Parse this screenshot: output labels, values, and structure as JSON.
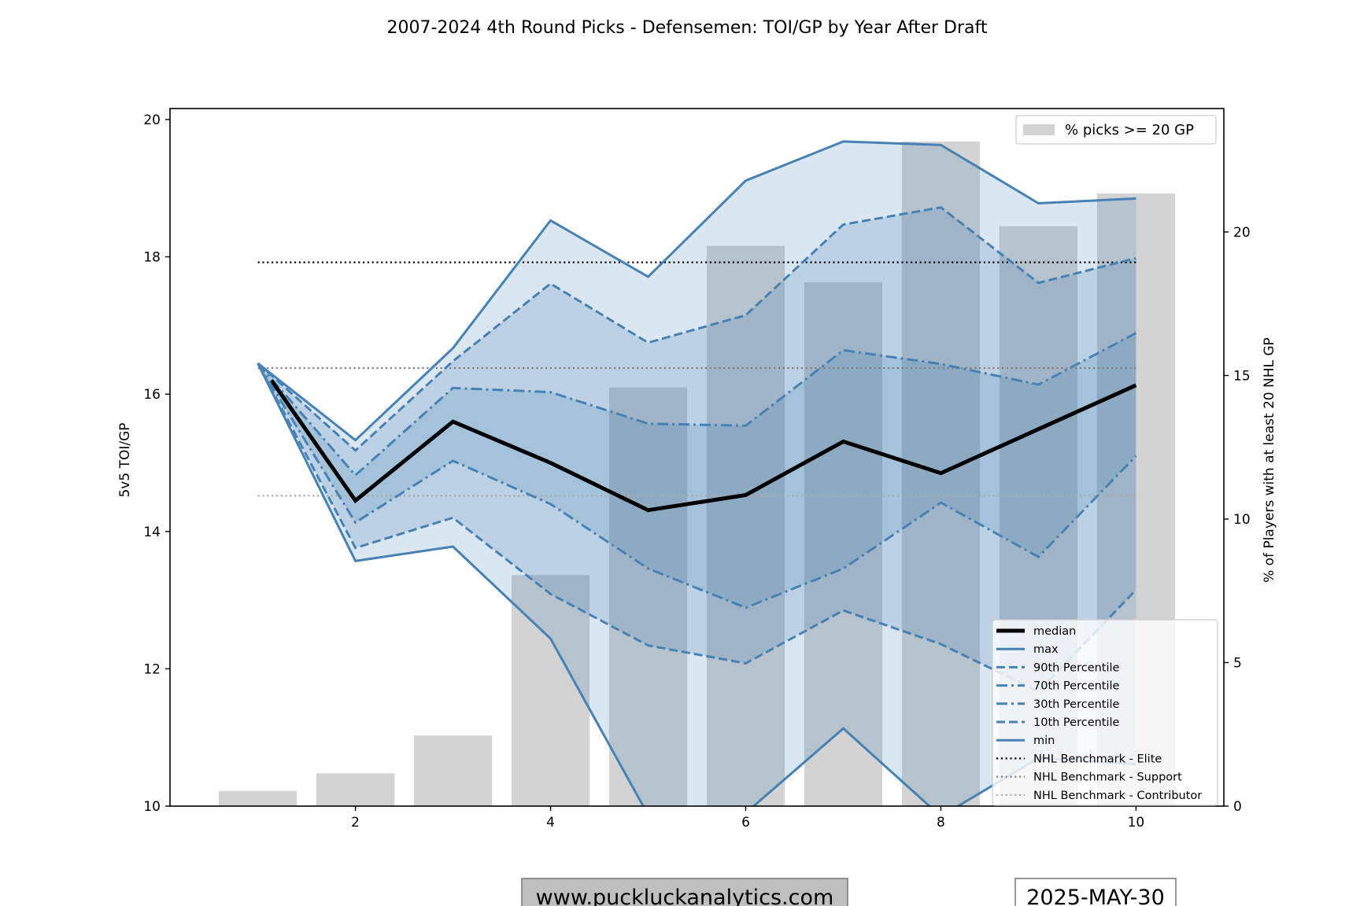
{
  "chart_data": {
    "type": "line",
    "title": "2007-2024 4th Round Picks - Defensemen: TOI/GP by Year After Draft",
    "xlabel": "",
    "ylabel": "5v5 TOI/GP",
    "ylabel_right": "% of Players with at least 20 NHL GP",
    "xlim": [
      0.1,
      10.9
    ],
    "ylim": [
      10,
      20.16
    ],
    "ylim_right": [
      0,
      24.3
    ],
    "x_ticks": [
      2,
      4,
      6,
      8,
      10
    ],
    "y_ticks": [
      10,
      12,
      14,
      16,
      18,
      20
    ],
    "y_ticks_right": [
      0,
      5,
      10,
      15,
      20
    ],
    "grid": false,
    "x": [
      1,
      2,
      3,
      4,
      5,
      6,
      7,
      8,
      9,
      10
    ],
    "series": [
      {
        "name": "max",
        "style": "solid",
        "values": [
          16.45,
          15.33,
          16.67,
          18.53,
          17.71,
          19.11,
          19.68,
          19.63,
          18.78,
          18.85
        ]
      },
      {
        "name": "90th Percentile",
        "style": "dashed",
        "values": [
          16.45,
          15.18,
          16.48,
          17.61,
          16.75,
          17.15,
          18.47,
          18.72,
          17.62,
          17.98
        ]
      },
      {
        "name": "70th Percentile",
        "style": "dashdot",
        "values": [
          16.45,
          14.82,
          16.09,
          16.03,
          15.57,
          15.54,
          16.64,
          16.44,
          16.14,
          16.89
        ]
      },
      {
        "name": "median",
        "style": "solid-bold",
        "values": [
          16.2,
          14.45,
          15.6,
          15.0,
          14.31,
          14.53,
          15.31,
          14.85,
          15.49,
          16.13
        ]
      },
      {
        "name": "30th Percentile",
        "style": "dashdot",
        "values": [
          16.45,
          14.13,
          15.03,
          14.4,
          13.46,
          12.89,
          13.46,
          14.42,
          13.63,
          15.1
        ]
      },
      {
        "name": "10th Percentile",
        "style": "dashed",
        "values": [
          16.45,
          13.76,
          14.2,
          13.09,
          12.34,
          12.08,
          12.85,
          12.36,
          11.67,
          13.15
        ]
      },
      {
        "name": "min",
        "style": "solid",
        "values": [
          16.45,
          13.57,
          13.78,
          12.44,
          9.87,
          9.9,
          11.13,
          9.85,
          10.7,
          10.61
        ]
      }
    ],
    "benchmarks": [
      {
        "name": "NHL Benchmark - Elite",
        "value": 17.92,
        "color": "#000000"
      },
      {
        "name": "NHL Benchmark - Support",
        "value": 16.38,
        "color": "#808080"
      },
      {
        "name": "NHL Benchmark - Contributor",
        "value": 14.52,
        "color": "#aaaaaa"
      }
    ],
    "bars": {
      "name": "% picks >= 20 GP",
      "axis": "right",
      "values": [
        0.53,
        1.14,
        2.46,
        8.05,
        14.58,
        19.52,
        18.25,
        23.15,
        20.2,
        21.34
      ]
    },
    "legend_main": {
      "placement": "lower-right",
      "entries": [
        "median",
        "max",
        "90th Percentile",
        "70th Percentile",
        "30th Percentile",
        "10th Percentile",
        "min",
        "NHL Benchmark - Elite",
        "NHL Benchmark - Support",
        "NHL Benchmark - Contributor"
      ]
    },
    "legend_bars": {
      "placement": "upper-right",
      "entries": [
        "% picks >= 20 GP"
      ]
    },
    "colors": {
      "line": "#4682b4",
      "median": "#000000",
      "band": "#4682b4",
      "bar": "#d3d3d3"
    }
  },
  "footer": {
    "website": "www.puckluckanalytics.com",
    "date": "2025-MAY-30"
  }
}
